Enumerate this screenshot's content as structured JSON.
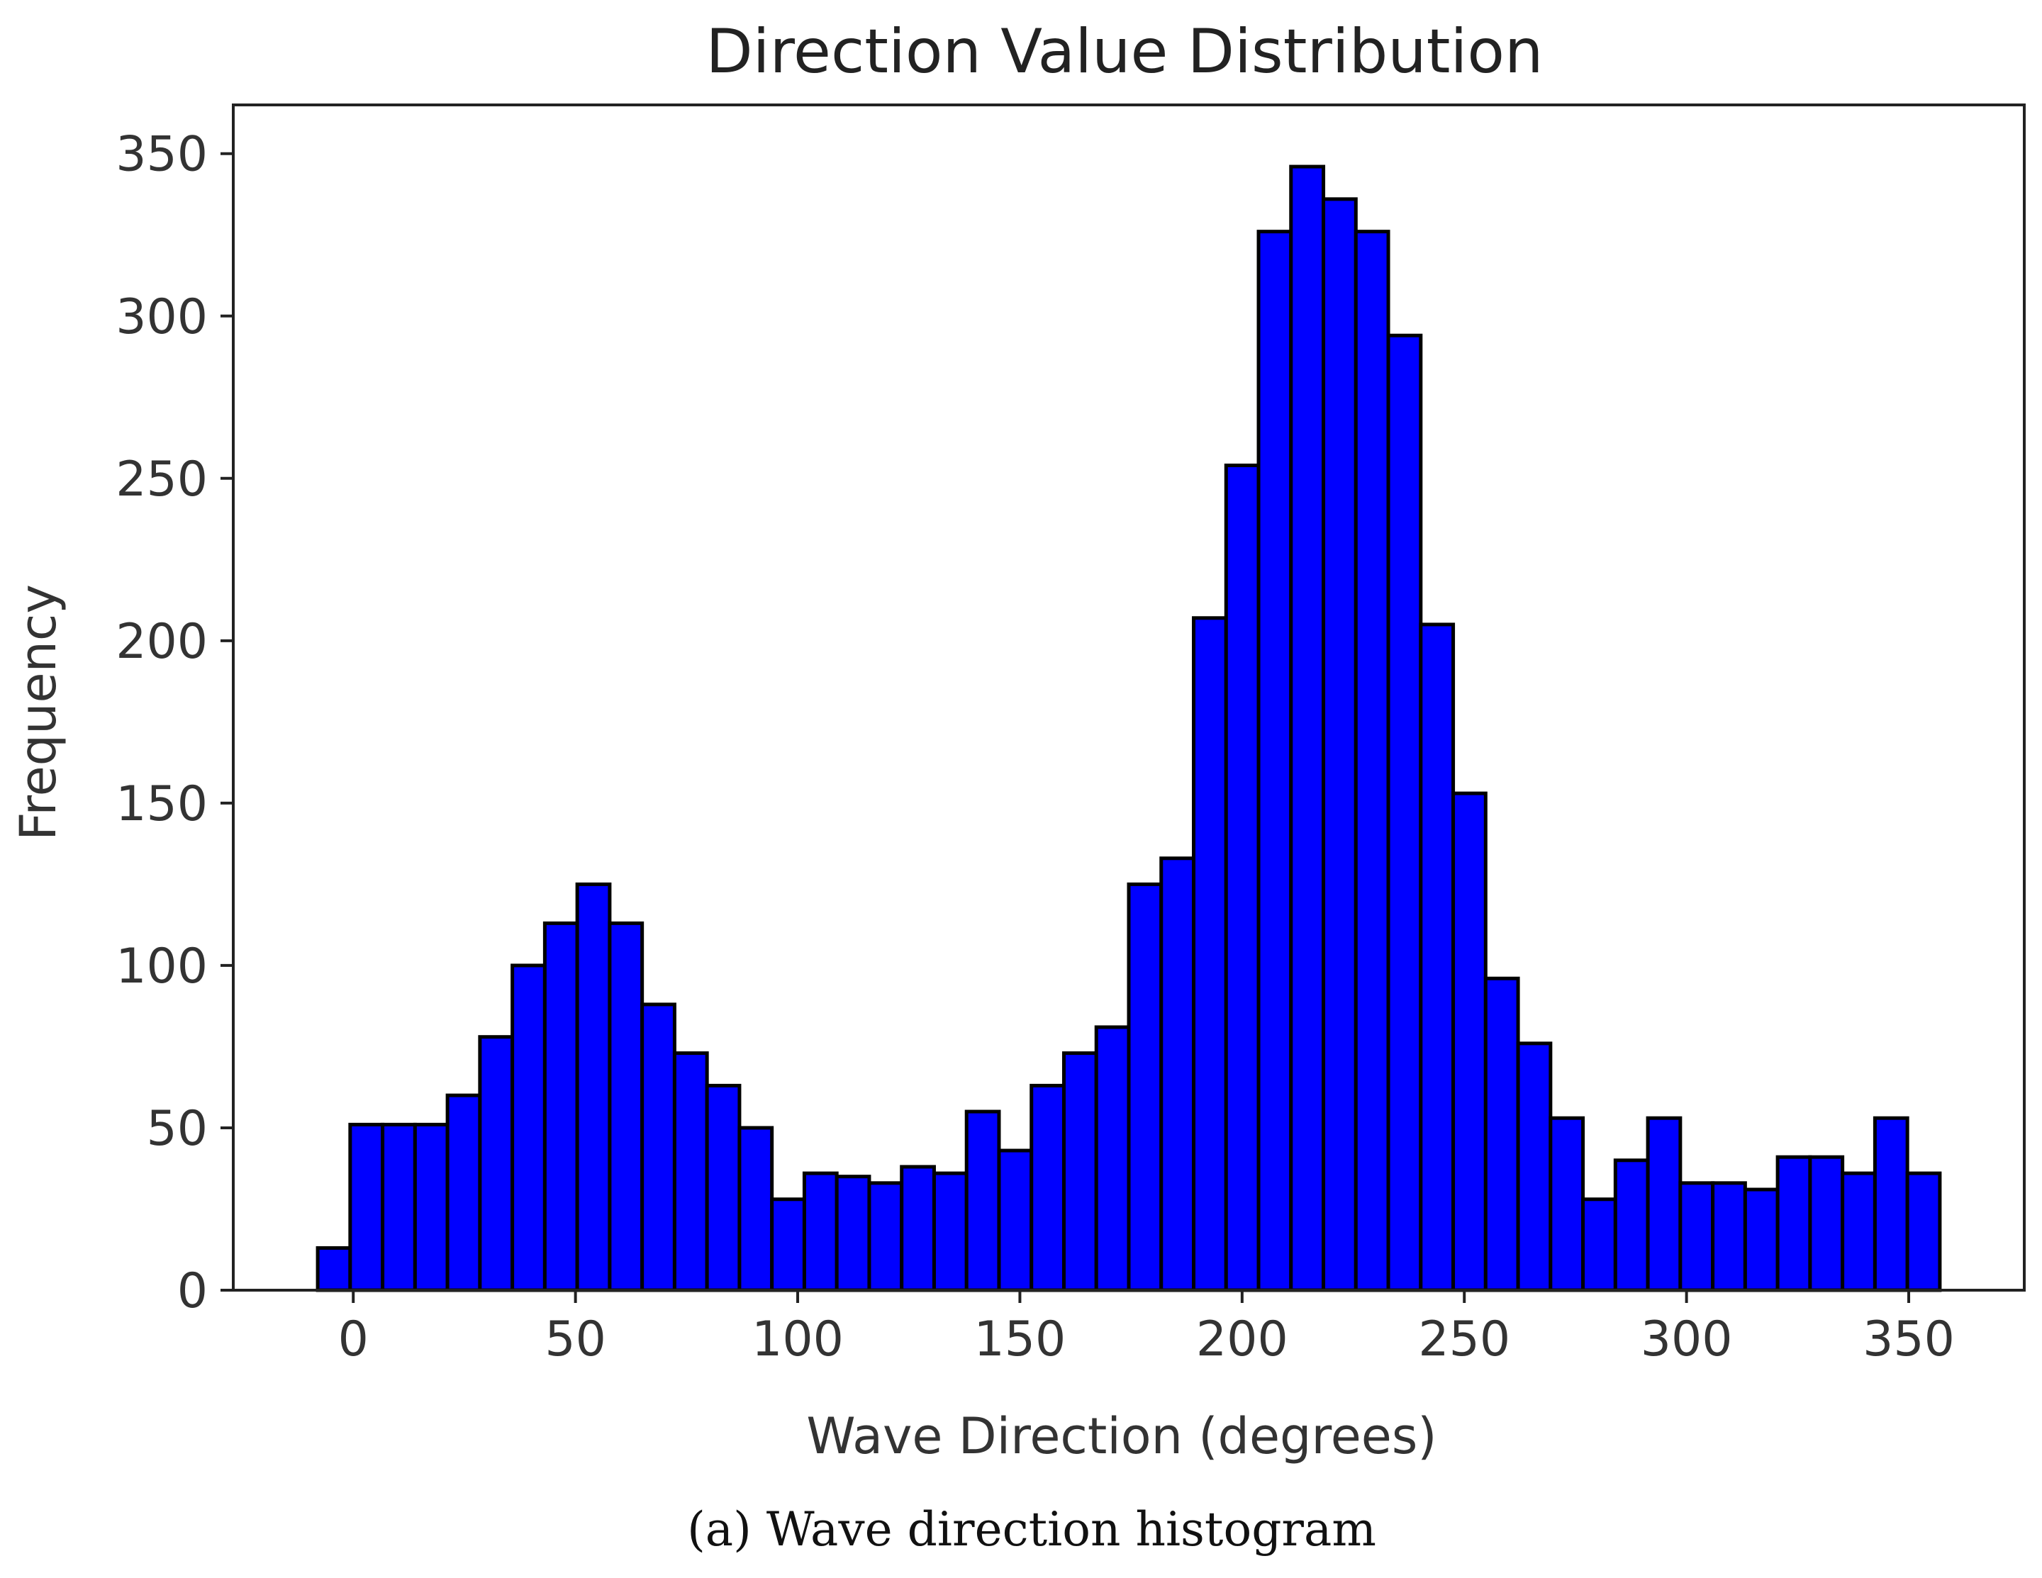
{
  "colors": {
    "bar_fill": "#0000ff",
    "bar_edge": "#000000",
    "axes": "#222222",
    "text": "#333333",
    "background": "#ffffff"
  },
  "caption": "(a) Wave direction histogram",
  "chart_data": {
    "type": "bar",
    "title": "Direction Value Distribution",
    "xlabel": "Wave Direction (degrees)",
    "ylabel": "Frequency",
    "xlim": [
      -27,
      376
    ],
    "ylim": [
      0,
      365
    ],
    "xticks": [
      0,
      50,
      100,
      150,
      200,
      250,
      300,
      350
    ],
    "xtick_labels": [
      "0",
      "50",
      "100",
      "150",
      "200",
      "250",
      "300",
      "350"
    ],
    "yticks": [
      0,
      50,
      100,
      150,
      200,
      250,
      300,
      350
    ],
    "ytick_labels": [
      "0",
      "50",
      "100",
      "150",
      "200",
      "250",
      "300",
      "350"
    ],
    "bin_width": 7.3,
    "bin_start": -8,
    "grid": false,
    "legend": "none",
    "values": [
      13,
      51,
      51,
      51,
      60,
      78,
      100,
      113,
      125,
      113,
      88,
      73,
      63,
      50,
      28,
      36,
      35,
      33,
      38,
      36,
      55,
      43,
      63,
      73,
      81,
      125,
      133,
      207,
      254,
      326,
      346,
      336,
      326,
      294,
      205,
      153,
      96,
      76,
      53,
      28,
      40,
      53,
      33,
      33,
      31,
      41,
      41,
      36,
      53,
      36
    ]
  }
}
